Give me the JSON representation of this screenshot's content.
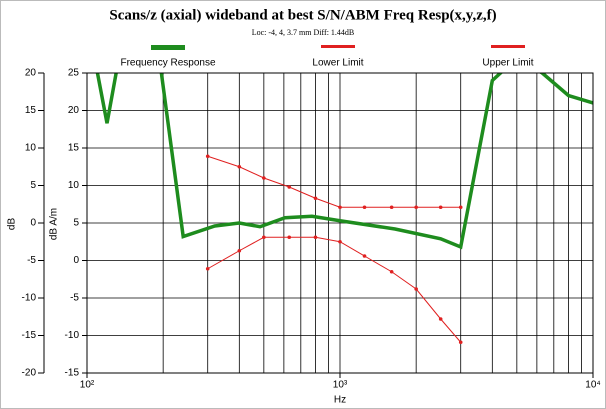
{
  "chart_data": {
    "type": "line",
    "title": "Scans/z (axial) wideband at best S/N/ABM Freq Resp(x,y,z,f)",
    "subtitle": "Loc: -4, 4, 3.7 mm Diff: 1.44dB",
    "x_label": "Hz",
    "y_label": "dB",
    "y2_label": "dB A/m",
    "xscale": "log",
    "xlim": [
      100,
      10000
    ],
    "xticks": [
      {
        "value": 100,
        "label": "10²"
      },
      {
        "value": 1000,
        "label": "10³"
      },
      {
        "value": 10000,
        "label": "10⁴"
      }
    ],
    "xminor_ticks": [
      200,
      300,
      400,
      500,
      600,
      700,
      800,
      900,
      2000,
      3000,
      4000,
      5000,
      6000,
      7000,
      8000,
      9000
    ],
    "ylim": [
      -20,
      20
    ],
    "yticks": [
      20,
      15,
      10,
      5,
      0,
      -5,
      -10,
      -15,
      -20
    ],
    "y2lim": [
      -15,
      25
    ],
    "y2ticks": [
      25,
      20,
      15,
      10,
      5,
      0,
      -5,
      -10,
      -15
    ],
    "grid": true,
    "legend": "top",
    "series": [
      {
        "name": "Frequency Response",
        "color": "#1e8c1e",
        "x": [
          110,
          120,
          132,
          195,
          240,
          320,
          400,
          483,
          606,
          775,
          1000,
          1650,
          2500,
          3000,
          4000,
          5000,
          6300,
          8000,
          10000
        ],
        "values": [
          20,
          13.3,
          21,
          21,
          -1.8,
          -0.4,
          0,
          -0.5,
          0.7,
          0.9,
          0.3,
          -0.8,
          -2.1,
          -3.2,
          19,
          22,
          20,
          17,
          16
        ]
      },
      {
        "name": "Lower Limit",
        "color": "#e02020",
        "x": [
          300,
          400,
          500,
          630,
          800,
          1000,
          1250,
          1600,
          2000,
          2500,
          3000
        ],
        "values": [
          -6.1,
          -3.7,
          -1.9,
          -1.9,
          -1.9,
          -2.5,
          -4.4,
          -6.5,
          -8.8,
          -12.8,
          -15.9
        ]
      },
      {
        "name": "Upper Limit",
        "color": "#e02020",
        "x": [
          300,
          400,
          500,
          630,
          800,
          1000,
          1250,
          1600,
          2000,
          2500,
          3000
        ],
        "values": [
          8.9,
          7.5,
          6,
          4.8,
          3.3,
          2.1,
          2.1,
          2.1,
          2.1,
          2.1,
          2.1
        ]
      }
    ]
  }
}
